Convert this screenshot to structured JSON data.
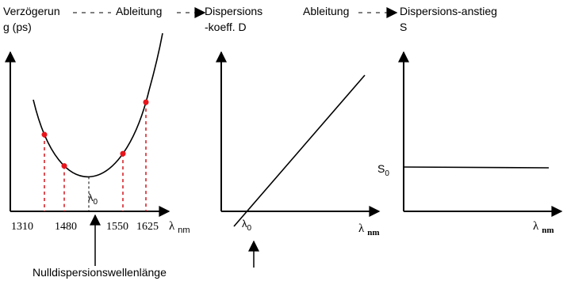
{
  "headers": {
    "delay_line1": "Verzögerun",
    "delay_line2": "g (ps)",
    "derivation1": "Ableitung",
    "dispersion_coeff_line1": "Dispersions",
    "dispersion_coeff_line2": "-koeff. D",
    "derivation2": "Ableitung",
    "slope_line1": "Dispersions-anstieg",
    "slope_line2": "S"
  },
  "panel1": {
    "x_ticks": [
      "1310",
      "1480",
      "1550",
      "1625"
    ],
    "x_axis_symbol": "λ",
    "x_axis_unit": "nm",
    "minimum_label": "λ",
    "minimum_label_sub": "0",
    "point_color": "#e8141b",
    "dash_color": "#d4141b"
  },
  "panel2": {
    "x_axis_symbol": "λ",
    "x_axis_unit": "nm",
    "zero_crossing_label": "λ",
    "zero_crossing_label_sub": "0"
  },
  "panel3": {
    "y_level_label": "S",
    "y_level_label_sub": "0",
    "x_axis_symbol": "λ",
    "x_axis_unit": "nm"
  },
  "footer": {
    "zero_dispersion_label": "Nulldispersionswellenlänge"
  }
}
